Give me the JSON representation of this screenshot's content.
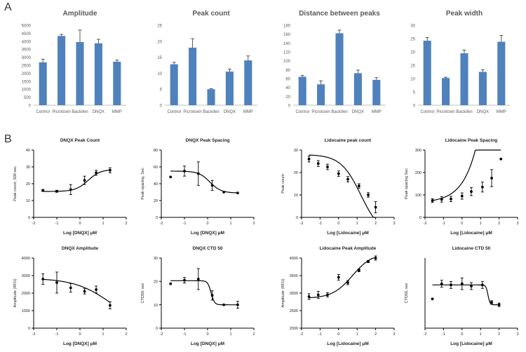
{
  "panel_labels": {
    "a": "A",
    "b": "B"
  },
  "chart_data": [
    {
      "type": "bar",
      "title": "Amplitude",
      "categories": [
        "Control",
        "Picrotoxin",
        "Baclofen",
        "DNQX",
        "MMP"
      ],
      "values": [
        2680,
        4330,
        3950,
        3870,
        2720
      ],
      "errors": [
        200,
        100,
        750,
        250,
        100
      ],
      "ylim": [
        0,
        5000
      ],
      "yticks": [
        0,
        500,
        1000,
        1500,
        2000,
        2500,
        3000,
        3500,
        4000,
        4500,
        5000
      ],
      "ytick_labels": [
        "0",
        "500",
        "1000",
        "1500",
        "2000",
        "2500",
        "3000",
        "3500",
        "4000",
        "4500",
        "5000"
      ],
      "xlabel": "",
      "ylabel": ""
    },
    {
      "type": "bar",
      "title": "Peak count",
      "categories": [
        "Control",
        "Picrotoxin",
        "Baclofen",
        "DNQX",
        "MMP"
      ],
      "values": [
        12.8,
        18.0,
        5.0,
        10.5,
        14.0
      ],
      "errors": [
        0.6,
        2.8,
        0.2,
        0.8,
        1.4
      ],
      "ylim": [
        0,
        25
      ],
      "yticks": [
        0,
        5,
        10,
        15,
        20,
        25
      ],
      "ytick_labels": [
        "0",
        "5",
        "10",
        "15",
        "20",
        "25"
      ],
      "xlabel": "",
      "ylabel": ""
    },
    {
      "type": "bar",
      "title": "Distance between peaks",
      "categories": [
        "Control",
        "Picrotoxin",
        "Baclofen",
        "DNQX",
        "MMP"
      ],
      "values": [
        64,
        47,
        162,
        72,
        57
      ],
      "errors": [
        3,
        8,
        7,
        7,
        5
      ],
      "ylim": [
        0,
        180
      ],
      "yticks": [
        0,
        20,
        40,
        60,
        80,
        100,
        120,
        140,
        160,
        180
      ],
      "ytick_labels": [
        "0",
        "20",
        "40",
        "60",
        "80",
        "100",
        "120",
        "140",
        "160",
        "180"
      ],
      "xlabel": "",
      "ylabel": ""
    },
    {
      "type": "bar",
      "title": "Peak width",
      "categories": [
        "Control",
        "Picrotoxin",
        "Baclofen",
        "DNQX",
        "MMP"
      ],
      "values": [
        24.2,
        10.2,
        19.5,
        12.5,
        23.8
      ],
      "errors": [
        1.2,
        0.3,
        1.2,
        0.8,
        2.4
      ],
      "ylim": [
        0,
        30
      ],
      "yticks": [
        0,
        5,
        10,
        15,
        20,
        25,
        30
      ],
      "ytick_labels": [
        "0",
        "5",
        "10",
        "15",
        "20",
        "25",
        "30"
      ],
      "xlabel": "",
      "ylabel": ""
    },
    {
      "type": "scatter",
      "title": "DNQX Peak Count",
      "xlabel": "Log [DNQX] μM",
      "ylabel": "Peak count, 500 sec",
      "xlim": [
        -2,
        2
      ],
      "ylim": [
        0,
        40
      ],
      "xticks": [
        -2,
        -1,
        0,
        1,
        2
      ],
      "xtick_labels": [
        "-2",
        "-1",
        "0",
        "1",
        "2"
      ],
      "yticks": [
        0,
        10,
        20,
        30,
        40
      ],
      "ytick_labels": [
        "0",
        "10",
        "20",
        "30",
        "40"
      ],
      "x": [
        -1.6,
        -1.0,
        -0.4,
        0.2,
        0.7,
        1.3
      ],
      "y": [
        16,
        15.5,
        16.5,
        22,
        26.5,
        28
      ],
      "errors": [
        0.6,
        0.6,
        3,
        2.5,
        1.5,
        1.5
      ],
      "fit": {
        "kind": "sigmoid",
        "bottom": 15.4,
        "top": 28.5,
        "ec50": 0.35,
        "hill": 1.6
      }
    },
    {
      "type": "scatter",
      "title": "DNQX Peak Spacing",
      "xlabel": "Log [DNQX] μM",
      "ylabel": "Peak spacing, Sec",
      "xlim": [
        -2,
        2
      ],
      "ylim": [
        0,
        80
      ],
      "xticks": [
        -2,
        -1,
        0,
        1,
        2
      ],
      "xtick_labels": [
        "-2",
        "-1",
        "0",
        "1",
        "2"
      ],
      "yticks": [
        0,
        20,
        40,
        60,
        80
      ],
      "ytick_labels": [
        "0",
        "20",
        "40",
        "60",
        "80"
      ],
      "x": [
        -1.6,
        -1.0,
        -0.4,
        0.2,
        0.7,
        1.3
      ],
      "y": [
        48,
        55,
        52,
        38,
        30,
        29
      ],
      "errors": [
        0,
        6,
        14,
        6,
        0,
        0
      ],
      "fit": {
        "kind": "sigmoid",
        "bottom": 29,
        "top": 55,
        "ec50": 0.1,
        "hill": -1.8
      }
    },
    {
      "type": "scatter",
      "title": "Lidocaine peak count",
      "xlabel": "Log [Lidocaine] μM",
      "ylabel": "Peak count",
      "xlim": [
        -2,
        3
      ],
      "ylim": [
        0,
        30
      ],
      "xticks": [
        -2,
        -1,
        0,
        1,
        2,
        3
      ],
      "xtick_labels": [
        "-2",
        "-1",
        "0",
        "1",
        "2",
        "3"
      ],
      "yticks": [
        0,
        10,
        20,
        30
      ],
      "ytick_labels": [
        "0",
        "10",
        "20",
        "30"
      ],
      "x": [
        -1.6,
        -1.1,
        -0.6,
        0.0,
        0.5,
        1.1,
        1.6,
        2.0
      ],
      "y": [
        26,
        24,
        22.5,
        19.5,
        17,
        14,
        10,
        4.5
      ],
      "errors": [
        1.3,
        1.3,
        1.2,
        1.2,
        1.2,
        1.0,
        1.0,
        2.5
      ],
      "fit": {
        "kind": "sigmoid",
        "bottom": -8,
        "top": 28,
        "ec50": 1.2,
        "hill": -0.8
      }
    },
    {
      "type": "scatter",
      "title": "Lidocaine Peak Spacing",
      "xlabel": "Log [Lidocaine] μM",
      "ylabel": "Peak spacing Sec",
      "xlim": [
        -2,
        3
      ],
      "ylim": [
        0,
        300
      ],
      "xticks": [
        -2,
        -1,
        0,
        1,
        2,
        3
      ],
      "xtick_labels": [
        "-2",
        "-1",
        "0",
        "1",
        "2",
        "3"
      ],
      "yticks": [
        0,
        100,
        200,
        300
      ],
      "ytick_labels": [
        "0",
        "100",
        "200",
        "300"
      ],
      "x": [
        -1.6,
        -1.1,
        -0.6,
        0.0,
        0.5,
        1.1,
        1.6,
        2.1
      ],
      "y": [
        75,
        80,
        82,
        95,
        115,
        135,
        175,
        260
      ],
      "errors": [
        8,
        12,
        12,
        14,
        18,
        22,
        38,
        0
      ],
      "fit": {
        "kind": "exp",
        "base": 65,
        "amp": 6,
        "rate": 1.35,
        "xref": -2
      }
    },
    {
      "type": "scatter",
      "title": "DNQX Amplitude",
      "xlabel": "Log [DNQX] μM",
      "ylabel": "Amplitude (RFU)",
      "xlim": [
        -2,
        2
      ],
      "ylim": [
        0,
        4000
      ],
      "xticks": [
        -2,
        -1,
        0,
        1,
        2
      ],
      "xtick_labels": [
        "-2",
        "-1",
        "0",
        "1",
        "2"
      ],
      "yticks": [
        0,
        1000,
        2000,
        3000,
        4000
      ],
      "ytick_labels": [
        "0",
        "1000",
        "2000",
        "3000",
        "4000"
      ],
      "x": [
        -1.6,
        -1.0,
        -0.4,
        0.2,
        0.7,
        1.3
      ],
      "y": [
        2800,
        2600,
        2300,
        2100,
        2200,
        1300
      ],
      "errors": [
        300,
        600,
        250,
        150,
        200,
        200
      ],
      "fit": {
        "kind": "sigmoid",
        "bottom": 0,
        "top": 2850,
        "ec50": 1.35,
        "hill": -0.55
      }
    },
    {
      "type": "scatter",
      "title": "DNQX CTD 50",
      "xlabel": "Log [DNQX] μM",
      "ylabel": "CTD50, sec",
      "xlim": [
        -2,
        2
      ],
      "ylim": [
        0,
        30
      ],
      "xticks": [
        -2,
        -1,
        0,
        1,
        2
      ],
      "xtick_labels": [
        "-2",
        "-1",
        "0",
        "1",
        "2"
      ],
      "yticks": [
        0,
        10,
        20,
        30
      ],
      "ytick_labels": [
        "0",
        "10",
        "20",
        "30"
      ],
      "x": [
        -1.6,
        -1.0,
        -0.4,
        0.2,
        0.7,
        1.3
      ],
      "y": [
        19,
        20.5,
        21,
        14,
        10,
        10
      ],
      "errors": [
        0,
        1.2,
        4.5,
        2,
        0,
        1.5
      ],
      "fit": {
        "kind": "sigmoid",
        "bottom": 10,
        "top": 20.3,
        "ec50": 0.15,
        "hill": -6
      }
    },
    {
      "type": "scatter",
      "title": "Lidocaine Peak Amplitude",
      "xlabel": "Log [Lidocaine] μM",
      "ylabel": "Amplitude (RFU)",
      "xlim": [
        -2,
        3
      ],
      "ylim": [
        2000,
        4000
      ],
      "xticks": [
        -2,
        -1,
        0,
        1,
        2,
        3
      ],
      "xtick_labels": [
        "-2",
        "-1",
        "0",
        "1",
        "2",
        "3"
      ],
      "yticks": [
        2000,
        2500,
        3000,
        3500,
        4000
      ],
      "ytick_labels": [
        "2000",
        "2500",
        "3000",
        "3500",
        "4000"
      ],
      "x": [
        -1.6,
        -1.1,
        -0.6,
        0.0,
        0.5,
        1.1,
        1.6,
        2.0
      ],
      "y": [
        2900,
        2950,
        2950,
        3450,
        3300,
        3650,
        3900,
        4000
      ],
      "errors": [
        80,
        100,
        60,
        80,
        60,
        40,
        30,
        60
      ],
      "fit": {
        "kind": "sigmoid",
        "bottom": 2850,
        "top": 4150,
        "ec50": 0.75,
        "hill": 0.8
      }
    },
    {
      "type": "scatter",
      "title": "Lidocaine CTD 50",
      "xlabel": "Log [Lidocaine] μM",
      "ylabel": "CTD50, sec",
      "xlim": [
        -2,
        3
      ],
      "ylim": [
        0,
        60
      ],
      "xticks": [
        -2,
        -1,
        0,
        1,
        2,
        3
      ],
      "xtick_labels": [
        "-2",
        "-1",
        "0",
        "1",
        "2",
        "3"
      ],
      "yticks": [],
      "ytick_labels": [],
      "x": [
        -1.6,
        -1.1,
        -0.6,
        0.0,
        0.5,
        1.1,
        1.6,
        2.0
      ],
      "y": [
        25,
        38,
        37,
        38,
        36,
        37,
        22,
        20
      ],
      "errors": [
        0,
        3,
        3,
        5,
        3,
        3,
        1.5,
        1.5
      ],
      "fit": {
        "kind": "sigmoid",
        "bottom": 20,
        "top": 37,
        "ec50": 1.4,
        "hill": -8
      }
    }
  ]
}
